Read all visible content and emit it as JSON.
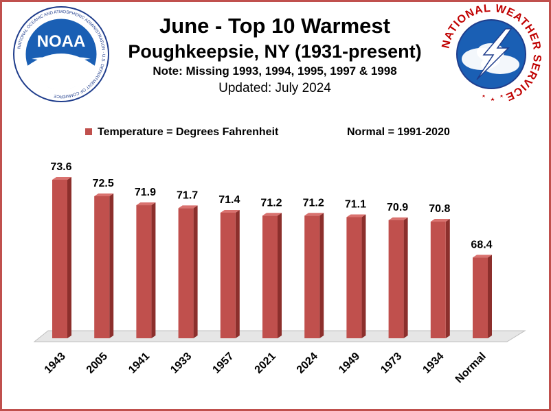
{
  "header": {
    "title": "June - Top 10 Warmest",
    "subtitle": "Poughkeepsie, NY (1931-present)",
    "note": "Note: Missing 1993, 1994, 1995, 1997 & 1998",
    "updated": "Updated:  July 2024"
  },
  "legend": {
    "series_label": "Temperature = Degrees Fahrenheit",
    "normal_label": "Normal = 1991-2020"
  },
  "logos": {
    "left": {
      "text": "NOAA",
      "ring_text": "NATIONAL OCEANIC AND ATMOSPHERIC ADMINISTRATION · U.S. DEPARTMENT OF COMMERCE"
    },
    "right": {
      "ring_text": "NATIONAL WEATHER SERVICE"
    }
  },
  "colors": {
    "bar_front": "#c0504d",
    "bar_side": "#8c2f2c",
    "bar_top": "#d9726f",
    "border": "#c0504d"
  },
  "chart_data": {
    "type": "bar",
    "categories": [
      "1943",
      "2005",
      "1941",
      "1933",
      "1957",
      "2021",
      "2024",
      "1949",
      "1973",
      "1934",
      "Normal"
    ],
    "values": [
      73.6,
      72.5,
      71.9,
      71.7,
      71.4,
      71.2,
      71.2,
      71.1,
      70.9,
      70.8,
      68.4
    ],
    "value_labels": [
      "73.6",
      "72.5",
      "71.9",
      "71.7",
      "71.4",
      "71.2",
      "71.2",
      "71.1",
      "70.9",
      "70.8",
      "68.4"
    ],
    "ylim": [
      63,
      74
    ],
    "grid": false,
    "legend_position": "top"
  }
}
